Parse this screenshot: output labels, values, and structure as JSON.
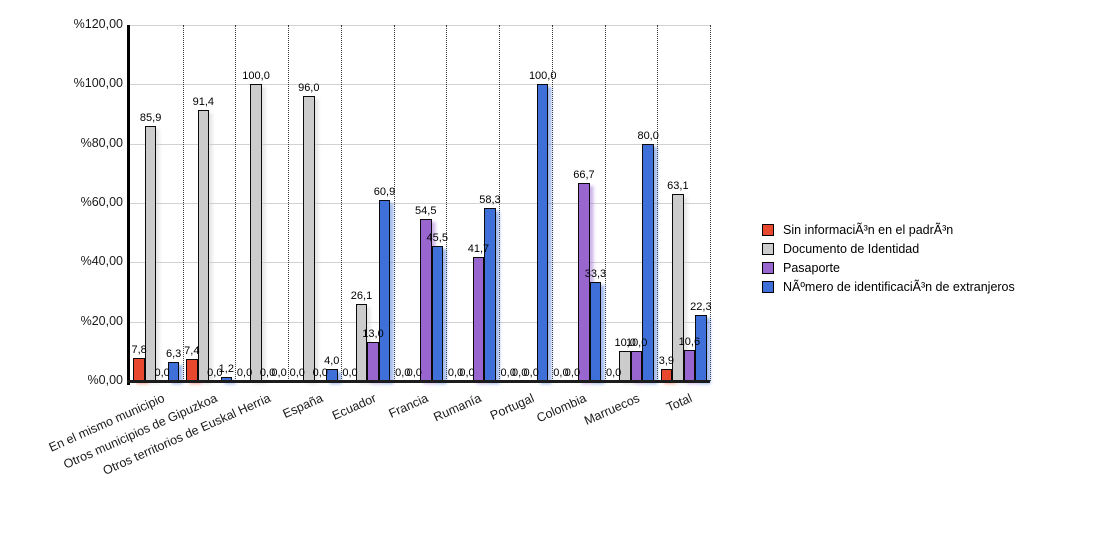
{
  "chart_data": {
    "type": "bar",
    "title": "",
    "xlabel": "",
    "ylabel": "",
    "categories": [
      "En el mismo municipio",
      "Otros municipios de Gipuzkoa",
      "Otros territorios de Euskal Herria",
      "España",
      "Ecuador",
      "Francia",
      "Rumanía",
      "Portugal",
      "Colombia",
      "Marruecos",
      "Total"
    ],
    "series": [
      {
        "name": "Sin informaciÃ³n en el padrÃ³n",
        "color": "#e8492e",
        "values": [
          7.8,
          7.4,
          0.0,
          0.0,
          0.0,
          0.0,
          0.0,
          0.0,
          0.0,
          0.0,
          3.9
        ]
      },
      {
        "name": "Documento de Identidad",
        "color": "#cccccc",
        "values": [
          85.9,
          91.4,
          100.0,
          96.0,
          26.1,
          0.0,
          0.0,
          0.0,
          0.0,
          10.0,
          63.1
        ]
      },
      {
        "name": "Pasaporte",
        "color": "#9966cf",
        "values": [
          0.0,
          0.0,
          0.0,
          0.0,
          13.0,
          54.5,
          41.7,
          0.0,
          66.7,
          10.0,
          10.6
        ]
      },
      {
        "name": "NÃºmero de identificaciÃ³n de extranjeros",
        "color": "#3f70d9",
        "values": [
          6.3,
          1.2,
          0.0,
          4.0,
          60.9,
          45.5,
          58.3,
          100.0,
          33.3,
          80.0,
          22.3
        ]
      }
    ],
    "ylim": [
      0,
      120
    ],
    "ytick_step": 20,
    "ytick_labels": [
      "%0,00",
      "%20,00",
      "%40,00",
      "%60,00",
      "%80,00",
      "%100,00",
      "%120,00"
    ],
    "grid": true,
    "legend_position": "right",
    "value_labels_shown": true,
    "decimal_separator": ","
  }
}
